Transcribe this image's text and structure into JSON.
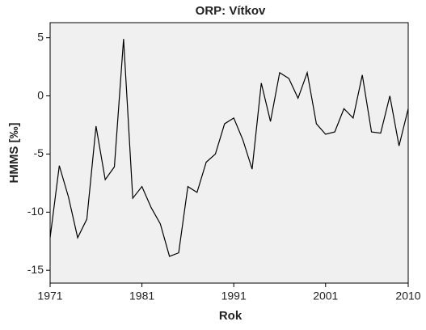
{
  "chart_data": {
    "type": "line",
    "title": "ORP: Vítkov",
    "x_label": "Rok",
    "y_label": "HMMS [‰]",
    "x": [
      1971,
      1972,
      1973,
      1974,
      1975,
      1976,
      1977,
      1978,
      1979,
      1980,
      1981,
      1982,
      1983,
      1984,
      1985,
      1986,
      1987,
      1988,
      1989,
      1990,
      1991,
      1992,
      1993,
      1994,
      1995,
      1996,
      1997,
      1998,
      1999,
      2000,
      2001,
      2002,
      2003,
      2004,
      2005,
      2006,
      2007,
      2008,
      2009,
      2010
    ],
    "series": [
      {
        "name": "HMMS",
        "color": "#000000",
        "values": [
          -12.2,
          -6.0,
          -8.7,
          -12.2,
          -10.6,
          -2.6,
          -7.2,
          -6.1,
          4.9,
          -8.8,
          -7.8,
          -9.6,
          -11.0,
          -13.8,
          -13.5,
          -7.8,
          -8.3,
          -5.7,
          -5.0,
          -2.4,
          -1.9,
          -3.8,
          -6.3,
          1.1,
          -2.2,
          2.0,
          1.5,
          -0.2,
          2.0,
          -2.4,
          -3.3,
          -3.1,
          -1.1,
          -1.9,
          1.8,
          -3.1,
          -3.2,
          0.0,
          -4.3,
          -1.1
        ]
      }
    ],
    "xlim": [
      1971,
      2010
    ],
    "xticks": [
      1971,
      1981,
      1991,
      2001,
      2010
    ],
    "ylim": [
      -16.1,
      6.3
    ],
    "yticks": [
      -15,
      -10,
      -5,
      0,
      5
    ],
    "grid": false
  }
}
